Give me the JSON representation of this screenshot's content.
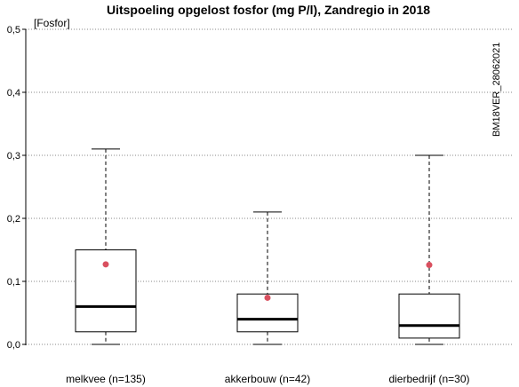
{
  "chart_data": {
    "type": "boxplot",
    "title": "Uitspoeling opgelost fosfor (mg P/l), Zandregio in 2018",
    "unit_label": "[Fosfor]",
    "side_label": "BM18VER_28062021",
    "ylim": [
      0,
      0.5
    ],
    "yticks": [
      {
        "value": 0.0,
        "label": "0,0"
      },
      {
        "value": 0.1,
        "label": "0,1"
      },
      {
        "value": 0.2,
        "label": "0,2"
      },
      {
        "value": 0.3,
        "label": "0,3"
      },
      {
        "value": 0.4,
        "label": "0,4"
      },
      {
        "value": 0.5,
        "label": "0,5"
      }
    ],
    "grid": "horizontal-dotted",
    "mean_color": "#d9505f",
    "categories": [
      "melkvee (n=135)",
      "akkerbouw (n=42)",
      "dierbedrijf (n=30)"
    ],
    "boxes": [
      {
        "min": 0.0,
        "q1": 0.02,
        "median": 0.06,
        "q3": 0.15,
        "max": 0.31,
        "mean": 0.127
      },
      {
        "min": 0.0,
        "q1": 0.02,
        "median": 0.04,
        "q3": 0.08,
        "max": 0.21,
        "mean": 0.074
      },
      {
        "min": 0.0,
        "q1": 0.01,
        "median": 0.03,
        "q3": 0.08,
        "max": 0.3,
        "mean": 0.126
      }
    ]
  }
}
